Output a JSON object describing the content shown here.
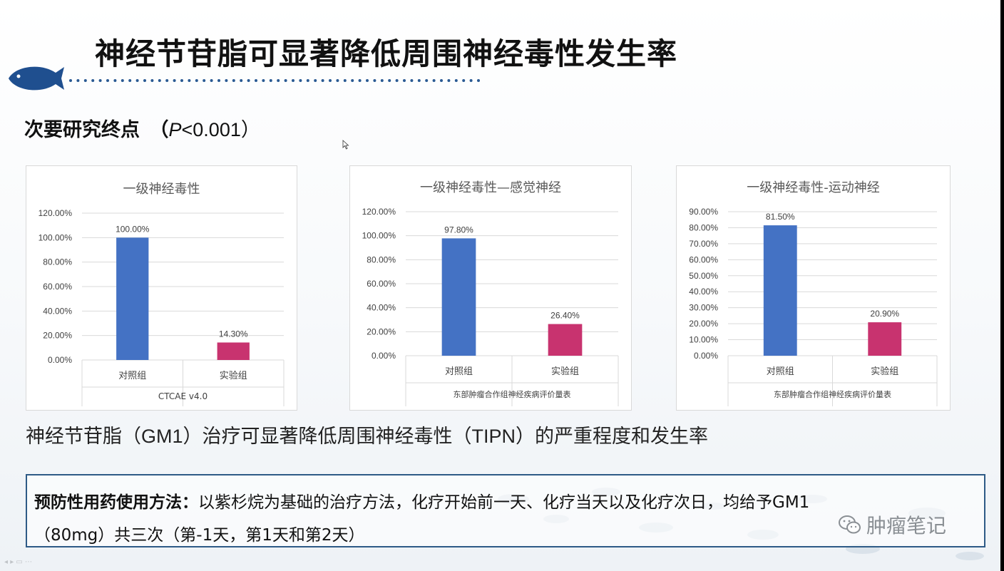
{
  "slide": {
    "title": "神经节苷脂可显著降低周围神经毒性发生率",
    "subtitle_prefix": "次要研究终点　（",
    "subtitle_p": "P",
    "subtitle_value": "<0.001）",
    "summary": "神经节苷脂（GM1）治疗可显著降低周围神经毒性（TIPN）的严重程度和发生率",
    "note": {
      "label": "预防性用药使用方法：",
      "line1": "以紫杉烷为基础的治疗方法，化疗开始前一天、化疗当天以及化疗次日，均给予GM1",
      "line2": "（80mg）共三次（第-1天，第1天和第2天）"
    },
    "watermark": "肿瘤笔记"
  },
  "colors": {
    "control": "#4472c4",
    "experiment": "#c8336f",
    "note_border": "#2e5a86",
    "fish": "#1f4f8f"
  },
  "icons": {
    "logo": "fish-icon",
    "watermark": "wechat-icon",
    "cursor": "mouse-cursor-icon"
  },
  "chart_data": [
    {
      "type": "bar",
      "title": "一级神经毒性",
      "categories": [
        "对照组",
        "实验组"
      ],
      "values": [
        100.0,
        14.3
      ],
      "data_labels": [
        "100.00%",
        "14.30%"
      ],
      "ylim": [
        0,
        120
      ],
      "yticks": [
        "0.00%",
        "20.00%",
        "40.00%",
        "60.00%",
        "80.00%",
        "100.00%",
        "120.00%"
      ],
      "xlabel": "CTCAE v4.0",
      "grid": true
    },
    {
      "type": "bar",
      "title": "一级神经毒性—感觉神经",
      "categories": [
        "对照组",
        "实验组"
      ],
      "values": [
        97.8,
        26.4
      ],
      "data_labels": [
        "97.80%",
        "26.40%"
      ],
      "ylim": [
        0,
        120
      ],
      "yticks": [
        "0.00%",
        "20.00%",
        "40.00%",
        "60.00%",
        "80.00%",
        "100.00%",
        "120.00%"
      ],
      "xlabel": "东部肿瘤合作组神经疾病评价量表",
      "grid": true
    },
    {
      "type": "bar",
      "title": "一级神经毒性-运动神经",
      "categories": [
        "对照组",
        "实验组"
      ],
      "values": [
        81.5,
        20.9
      ],
      "data_labels": [
        "81.50%",
        "20.90%"
      ],
      "ylim": [
        0,
        90
      ],
      "yticks": [
        "0.00%",
        "10.00%",
        "20.00%",
        "30.00%",
        "40.00%",
        "50.00%",
        "60.00%",
        "70.00%",
        "80.00%",
        "90.00%"
      ],
      "xlabel": "东部肿瘤合作组神经疾病评价量表",
      "grid": true
    }
  ]
}
